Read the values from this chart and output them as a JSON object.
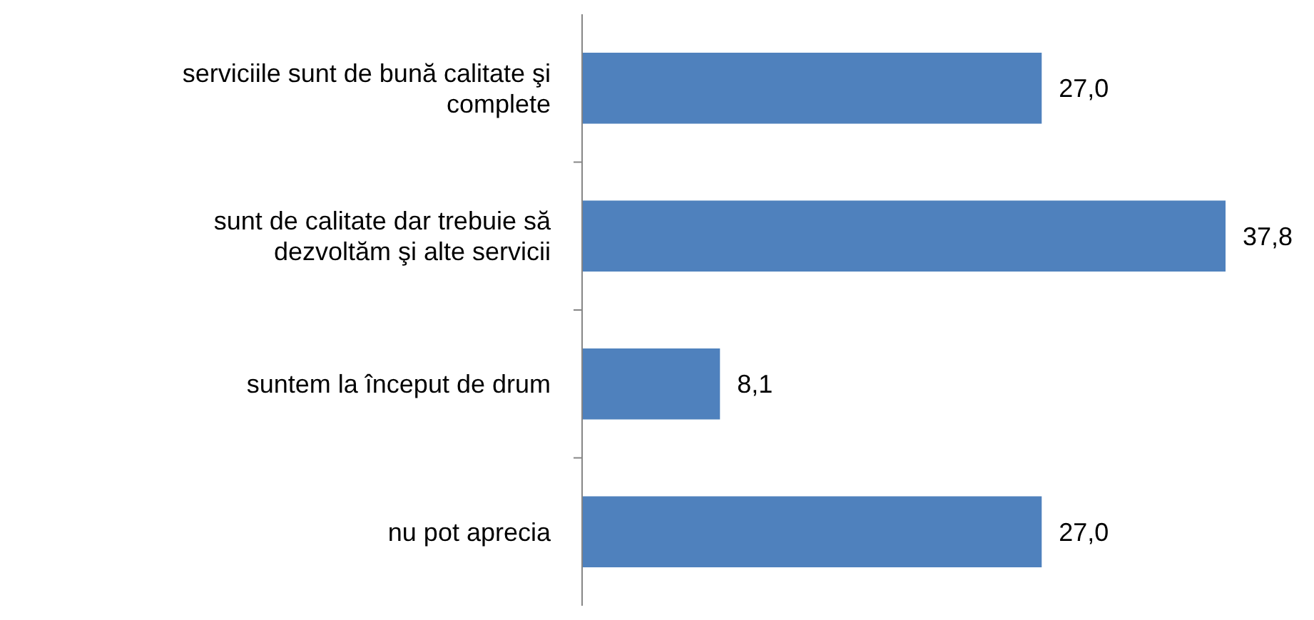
{
  "chart_data": {
    "type": "bar",
    "orientation": "horizontal",
    "categories": [
      "serviciile sunt de bună calitate şi complete",
      "sunt de calitate dar trebuie să dezvoltăm şi alte servicii",
      "suntem la început de drum",
      "nu pot aprecia"
    ],
    "values": [
      27.0,
      37.8,
      8.1,
      27.0
    ],
    "value_labels": [
      "27,0",
      "37,8",
      "8,1",
      "27,0"
    ],
    "color": "#4f81bd"
  }
}
